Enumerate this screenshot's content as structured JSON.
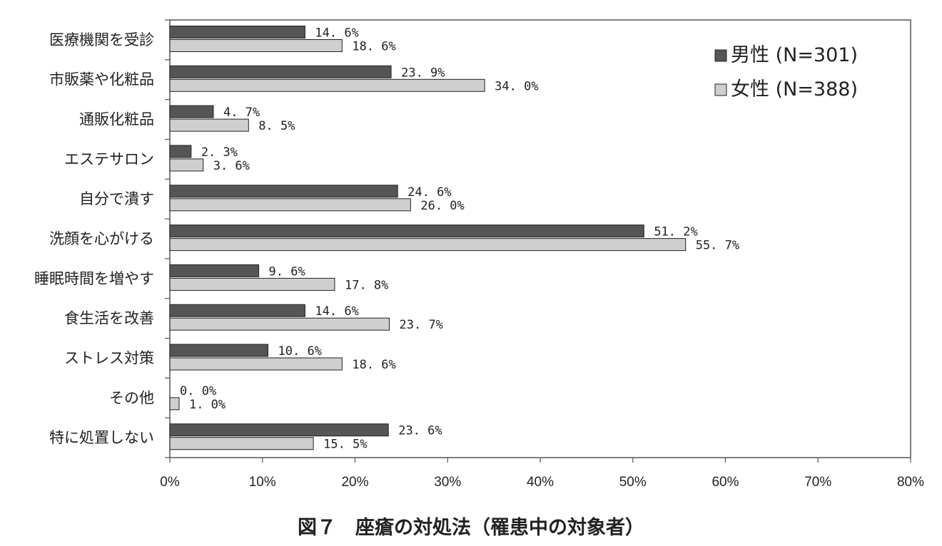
{
  "chart_data": {
    "type": "bar",
    "orientation": "horizontal",
    "caption": "図７　座瘡の対処法（罹患中の対象者）",
    "categories": [
      "医療機関を受診",
      "市販薬や化粧品",
      "通販化粧品",
      "エステサロン",
      "自分で潰す",
      "洗顔を心がける",
      "睡眠時間を増やす",
      "食生活を改善",
      "ストレス対策",
      "その他",
      "特に処置しない"
    ],
    "series": [
      {
        "name": "男性 (N=301)",
        "color": "#555555",
        "values": [
          14.6,
          23.9,
          4.7,
          2.3,
          24.6,
          51.2,
          9.6,
          14.6,
          10.6,
          0.0,
          23.6
        ],
        "labels": [
          "14. 6%",
          "23. 9%",
          "4. 7%",
          "2. 3%",
          "24. 6%",
          "51. 2%",
          "9. 6%",
          "14. 6%",
          "10. 6%",
          "0. 0%",
          "23. 6%"
        ]
      },
      {
        "name": "女性 (N=388)",
        "color": "#cfcfcf",
        "values": [
          18.6,
          34.0,
          8.5,
          3.6,
          26.0,
          55.7,
          17.8,
          23.7,
          18.6,
          1.0,
          15.5
        ],
        "labels": [
          "18. 6%",
          "34. 0%",
          "8. 5%",
          "3. 6%",
          "26. 0%",
          "55. 7%",
          "17. 8%",
          "23. 7%",
          "18. 6%",
          "1. 0%",
          "15. 5%"
        ]
      }
    ],
    "xlim": [
      0,
      80
    ],
    "xticks": [
      0,
      10,
      20,
      30,
      40,
      50,
      60,
      70,
      80
    ],
    "xtick_labels": [
      "0%",
      "10%",
      "20%",
      "30%",
      "40%",
      "50%",
      "60%",
      "70%",
      "80%"
    ],
    "grid": false,
    "legend_position": "top-right"
  }
}
